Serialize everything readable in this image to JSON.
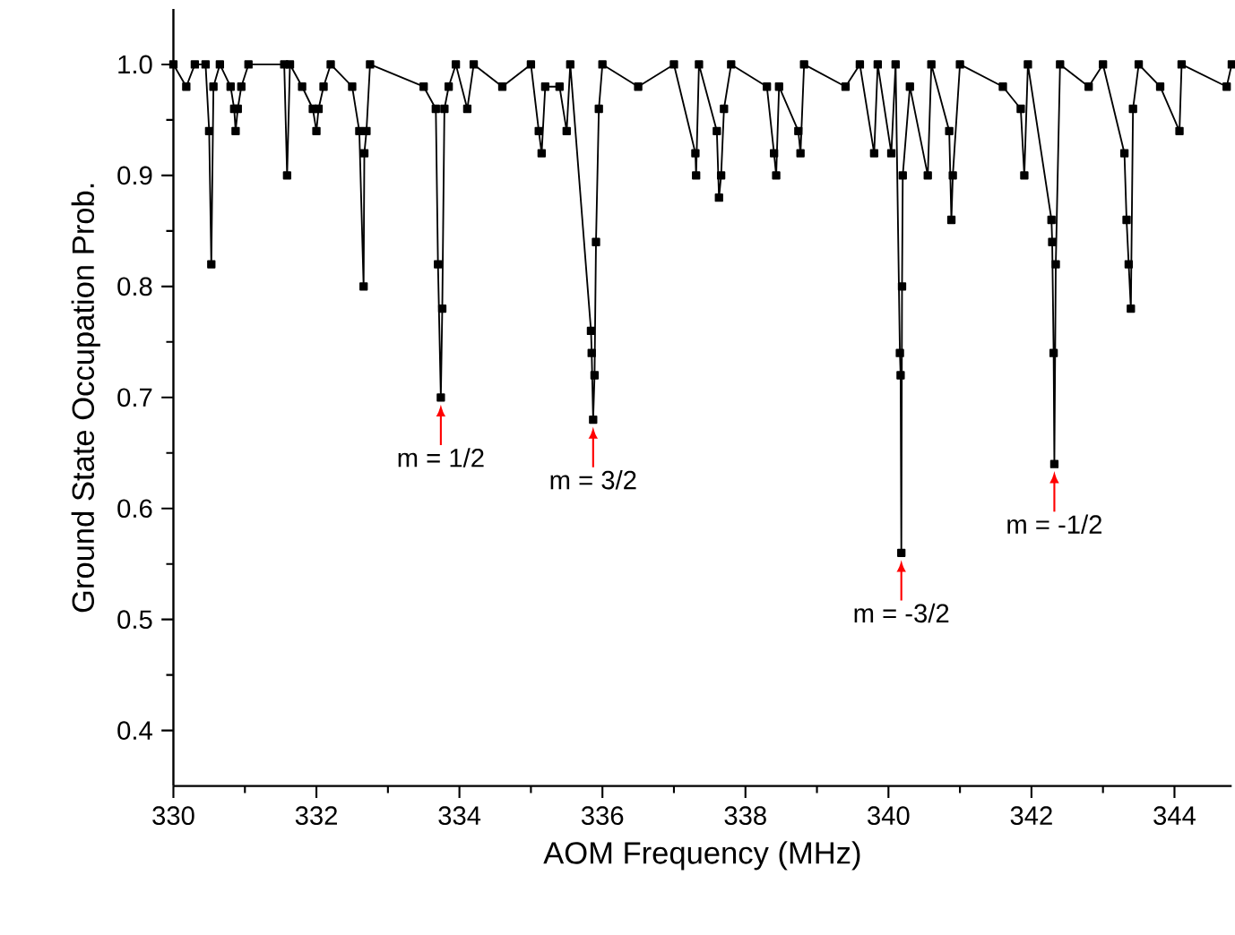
{
  "chart_data": {
    "type": "line",
    "xlabel": "AOM Frequency (MHz)",
    "ylabel": "Ground State Occupation Prob.",
    "color": "#000000",
    "marker": "square",
    "x": [
      330.0,
      330.18,
      330.3,
      330.45,
      330.5,
      330.53,
      330.56,
      330.65,
      330.8,
      330.85,
      330.87,
      330.9,
      330.95,
      331.05,
      331.55,
      331.59,
      331.63,
      331.8,
      331.95,
      332.0,
      332.03,
      332.1,
      332.2,
      332.5,
      332.6,
      332.66,
      332.67,
      332.7,
      332.75,
      333.5,
      333.67,
      333.7,
      333.74,
      333.76,
      333.79,
      333.85,
      333.95,
      334.11,
      334.2,
      334.6,
      335.0,
      335.11,
      335.15,
      335.2,
      335.4,
      335.5,
      335.55,
      335.84,
      335.85,
      335.87,
      335.89,
      335.91,
      335.95,
      336.0,
      336.5,
      337.0,
      337.3,
      337.31,
      337.35,
      337.6,
      337.63,
      337.66,
      337.7,
      337.8,
      338.3,
      338.4,
      338.43,
      338.47,
      338.74,
      338.77,
      338.82,
      339.4,
      339.6,
      339.8,
      339.85,
      340.04,
      340.1,
      340.16,
      340.17,
      340.18,
      340.19,
      340.2,
      340.3,
      340.55,
      340.6,
      340.85,
      340.88,
      340.9,
      341.0,
      341.6,
      341.85,
      341.9,
      341.95,
      342.28,
      342.29,
      342.31,
      342.32,
      342.34,
      342.4,
      342.8,
      343.0,
      343.3,
      343.33,
      343.36,
      343.39,
      343.42,
      343.5,
      343.8,
      344.07,
      344.1,
      344.73,
      344.8
    ],
    "values": [
      1.0,
      0.98,
      1.0,
      1.0,
      0.94,
      0.82,
      0.98,
      1.0,
      0.98,
      0.96,
      0.94,
      0.96,
      0.98,
      1.0,
      1.0,
      0.9,
      1.0,
      0.98,
      0.96,
      0.94,
      0.96,
      0.98,
      1.0,
      0.98,
      0.94,
      0.8,
      0.92,
      0.94,
      1.0,
      0.98,
      0.96,
      0.82,
      0.7,
      0.78,
      0.96,
      0.98,
      1.0,
      0.96,
      1.0,
      0.98,
      1.0,
      0.94,
      0.92,
      0.98,
      0.98,
      0.94,
      1.0,
      0.76,
      0.74,
      0.68,
      0.72,
      0.84,
      0.96,
      1.0,
      0.98,
      1.0,
      0.92,
      0.9,
      1.0,
      0.94,
      0.88,
      0.9,
      0.96,
      1.0,
      0.98,
      0.92,
      0.9,
      0.98,
      0.94,
      0.92,
      1.0,
      0.98,
      1.0,
      0.92,
      1.0,
      0.92,
      1.0,
      0.74,
      0.72,
      0.56,
      0.8,
      0.9,
      0.98,
      0.9,
      1.0,
      0.94,
      0.86,
      0.9,
      1.0,
      0.98,
      0.96,
      0.9,
      1.0,
      0.86,
      0.84,
      0.74,
      0.64,
      0.82,
      1.0,
      0.98,
      1.0,
      0.92,
      0.86,
      0.82,
      0.78,
      0.96,
      1.0,
      0.98,
      0.94,
      1.0,
      0.98,
      1.0
    ],
    "xlim": [
      330,
      344.8
    ],
    "ylim": [
      0.35,
      1.05
    ],
    "xticks": [
      330,
      332,
      334,
      336,
      338,
      340,
      342,
      344
    ],
    "yticks": [
      {
        "value": 0.4,
        "label": "0.4"
      },
      {
        "value": 0.5,
        "label": "0.5"
      },
      {
        "value": 0.6,
        "label": "0.6"
      },
      {
        "value": 0.7,
        "label": "0.7"
      },
      {
        "value": 0.8,
        "label": "0.8"
      },
      {
        "value": 0.9,
        "label": "0.9"
      },
      {
        "value": 1.0,
        "label": "1.0"
      }
    ],
    "annotations": [
      {
        "text": "m = 1/2",
        "x": 333.74,
        "y": 0.7
      },
      {
        "text": "m = 3/2",
        "x": 335.87,
        "y": 0.68
      },
      {
        "text": "m = -3/2",
        "x": 340.18,
        "y": 0.56
      },
      {
        "text": "m = -1/2",
        "x": 342.32,
        "y": 0.64
      }
    ]
  }
}
